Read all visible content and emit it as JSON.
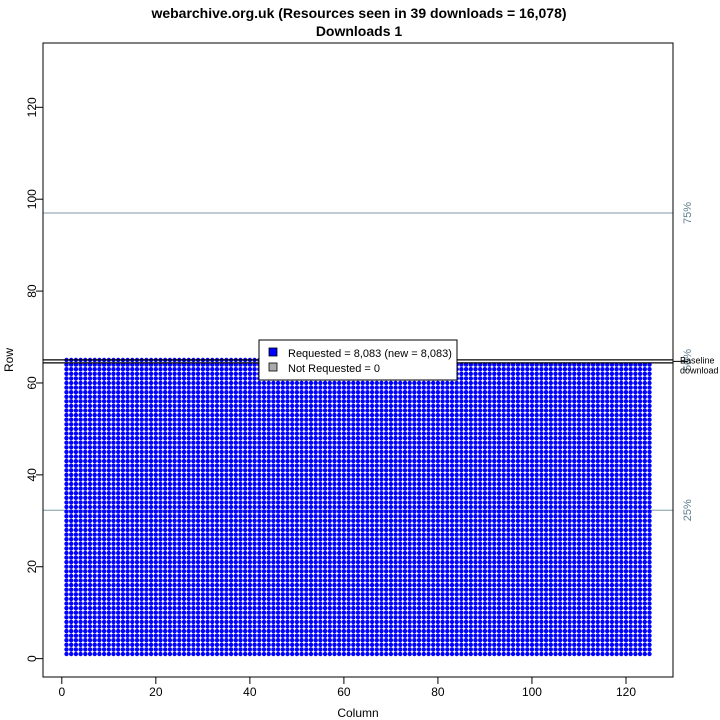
{
  "chart_data": {
    "type": "scatter",
    "title": "webarchive.org.uk (Resources seen in 39 downloads = 16,078)",
    "subtitle": "Downloads 1",
    "xlabel": "Column",
    "ylabel": "Row",
    "xlim": [
      -4,
      130
    ],
    "ylim": [
      -4,
      134
    ],
    "xticks": [
      0,
      20,
      40,
      60,
      80,
      100,
      120
    ],
    "yticks": [
      0,
      20,
      40,
      60,
      80,
      100,
      120
    ],
    "grid": false,
    "grid_columns": [
      1,
      125
    ],
    "grid_rows": [
      1,
      65
    ],
    "series": [
      {
        "name": "Requested = 8,083 (new = 8,083)",
        "color": "#0000ff",
        "count": 8083
      },
      {
        "name": "Not Requested = 0",
        "color": "#aaaaaa",
        "count": 0
      }
    ],
    "reference_lines": [
      {
        "y": 97,
        "label": "75%",
        "color": "#7f9aa6"
      },
      {
        "y": 65,
        "label": "50%",
        "color": "#7f9aa6"
      },
      {
        "y": 32.3,
        "label": "25%",
        "color": "#7f9aa6"
      }
    ],
    "baseline": {
      "y": 64.7,
      "label_line1": "Baseline",
      "label_line2": "download",
      "color": "#000000"
    },
    "legend_position": "center"
  }
}
